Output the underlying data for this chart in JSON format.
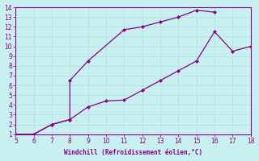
{
  "xlabel": "Windchill (Refroidissement éolien,°C)",
  "xlim": [
    5,
    18
  ],
  "ylim": [
    1,
    14
  ],
  "xticks": [
    5,
    6,
    7,
    8,
    9,
    10,
    11,
    12,
    13,
    14,
    15,
    16,
    17,
    18
  ],
  "yticks": [
    1,
    2,
    3,
    4,
    5,
    6,
    7,
    8,
    9,
    10,
    11,
    12,
    13,
    14
  ],
  "bg_color": "#c8f0f0",
  "grid_color": "#b0dede",
  "line_color": "#880088",
  "upper_x": [
    5,
    6,
    7,
    8,
    8,
    9,
    11,
    12,
    13,
    14,
    15,
    16
  ],
  "upper_y": [
    1,
    1,
    2,
    2.5,
    6.5,
    8.5,
    11.7,
    12.0,
    12.5,
    13.0,
    13.7,
    13.5
  ],
  "lower_x": [
    5,
    6,
    7,
    8,
    9,
    10,
    11,
    12,
    13,
    14,
    15,
    16,
    17,
    18
  ],
  "lower_y": [
    1,
    1,
    2,
    2.5,
    3.8,
    4.4,
    4.5,
    5.5,
    6.5,
    7.5,
    8.5,
    11.5,
    9.5,
    10.0
  ],
  "marker": "D",
  "markersize": 2.5,
  "linewidth": 0.9
}
